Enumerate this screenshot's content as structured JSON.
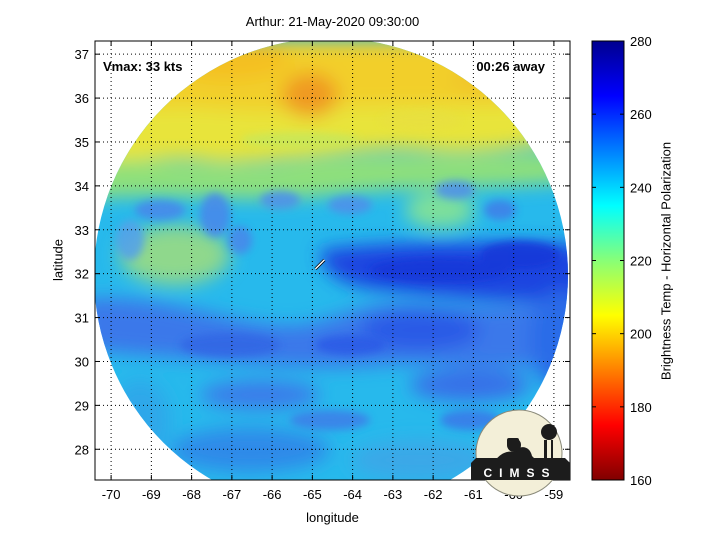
{
  "chart_data": {
    "type": "heatmap",
    "title": "Arthur: 21-May-2020 09:30:00",
    "xlabel": "longitude",
    "ylabel": "latitude",
    "xlim": [
      -70.4,
      -58.6
    ],
    "ylim": [
      27.3,
      37.3
    ],
    "x_ticks": [
      "-70",
      "-69",
      "-68",
      "-67",
      "-66",
      "-65",
      "-64",
      "-63",
      "-62",
      "-61",
      "-60",
      "-59"
    ],
    "y_ticks": [
      "28",
      "29",
      "30",
      "31",
      "32",
      "33",
      "34",
      "35",
      "36",
      "37"
    ],
    "grid": true,
    "colorbar": {
      "label": "Brightness Temp - Horizontal Polarization",
      "range": [
        160,
        280
      ],
      "ticks": [
        "160",
        "180",
        "200",
        "220",
        "240",
        "260",
        "280"
      ],
      "placement": "right",
      "colormap": "jet"
    },
    "annotations": {
      "vmax": "Vmax: 33 kts",
      "time_offset": "00:26 away"
    },
    "storm_center": {
      "lon": -64.8,
      "lat": 32.2
    },
    "logo_text": "CIMSS"
  }
}
